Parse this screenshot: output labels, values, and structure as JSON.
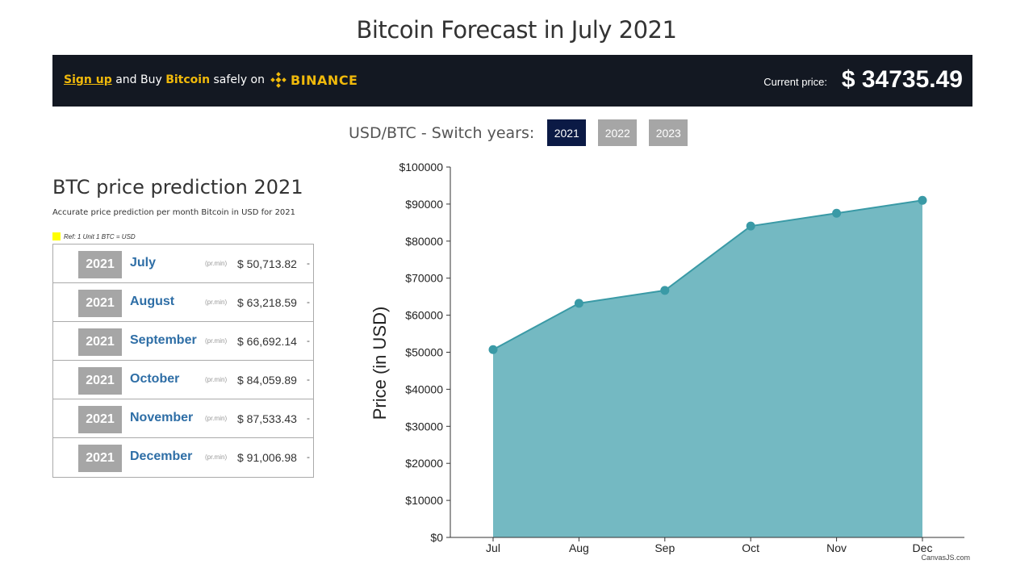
{
  "page": {
    "title": "Bitcoin Forecast in July 2021"
  },
  "banner": {
    "signup": "Sign up",
    "text_and_buy": "and Buy",
    "bitcoin": "Bitcoin",
    "safely_on": "safely on",
    "exchange": "BINANCE",
    "current_price_label": "Current price:",
    "current_price_value": "$ 34735.49",
    "accent": "#f0b90b"
  },
  "switch": {
    "label": "USD/BTC - Switch years:",
    "years": [
      "2021",
      "2022",
      "2023"
    ],
    "selected": "2021"
  },
  "prediction": {
    "title": "BTC price prediction 2021",
    "subtitle": "Accurate price prediction per month Bitcoin in USD for 2021",
    "ref": "Ref: 1 Unit 1 BTC = USD",
    "prmin": "(pr.min)",
    "rows": [
      {
        "year": "2021",
        "month": "July",
        "price": "$ 50,713.82",
        "dash": "-"
      },
      {
        "year": "2021",
        "month": "August",
        "price": "$ 63,218.59",
        "dash": "-"
      },
      {
        "year": "2021",
        "month": "September",
        "price": "$ 66,692.14",
        "dash": "-"
      },
      {
        "year": "2021",
        "month": "October",
        "price": "$ 84,059.89",
        "dash": "-"
      },
      {
        "year": "2021",
        "month": "November",
        "price": "$ 87,533.43",
        "dash": "-"
      },
      {
        "year": "2021",
        "month": "December",
        "price": "$ 91,006.98",
        "dash": "-"
      }
    ]
  },
  "chart_data": {
    "type": "area",
    "categories": [
      "Jul",
      "Aug",
      "Sep",
      "Oct",
      "Nov",
      "Dec"
    ],
    "values": [
      50713.82,
      63218.59,
      66692.14,
      84059.89,
      87533.43,
      91006.98
    ],
    "ylabel": "Price (in USD)",
    "ylim": [
      0,
      100000
    ],
    "yticks": [
      "$0",
      "$10000",
      "$20000",
      "$30000",
      "$40000",
      "$50000",
      "$60000",
      "$70000",
      "$80000",
      "$90000",
      "$100000"
    ],
    "credit": "CanvasJS.com",
    "fill_color": "#74b9c2",
    "line_color": "#3a9aa6"
  }
}
